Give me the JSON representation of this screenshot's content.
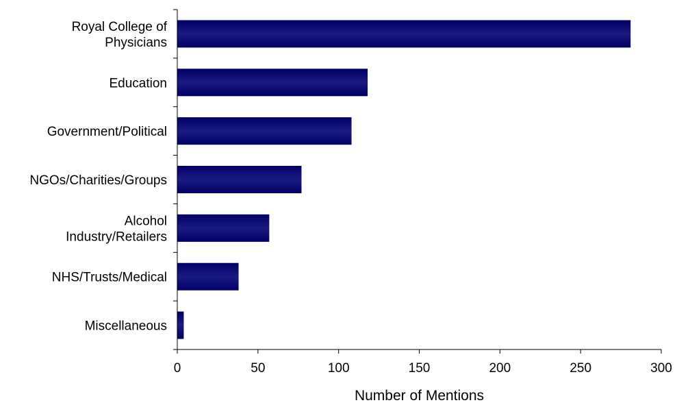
{
  "chart_data": {
    "type": "bar",
    "orientation": "horizontal",
    "categories": [
      "Royal College of Physicians",
      "Education",
      "Government/Political",
      "NGOs/Charities/Groups",
      "Alcohol Industry/Retailers",
      "NHS/Trusts/Medical",
      "Miscellaneous"
    ],
    "category_lines": [
      [
        "Royal College of",
        "Physicians"
      ],
      [
        "Education"
      ],
      [
        "Government/Political"
      ],
      [
        "NGOs/Charities/Groups"
      ],
      [
        "Alcohol",
        "Industry/Retailers"
      ],
      [
        "NHS/Trusts/Medical"
      ],
      [
        "Miscellaneous"
      ]
    ],
    "values": [
      281,
      118,
      108,
      77,
      57,
      38,
      4
    ],
    "xlabel": "Number of Mentions",
    "ylabel": "",
    "xlim": [
      0,
      300
    ],
    "xticks": [
      0,
      50,
      100,
      150,
      200,
      250,
      300
    ],
    "grid": false,
    "legend": "none",
    "bar_color": "#000066",
    "bar_highlight": "#1a1a80"
  }
}
